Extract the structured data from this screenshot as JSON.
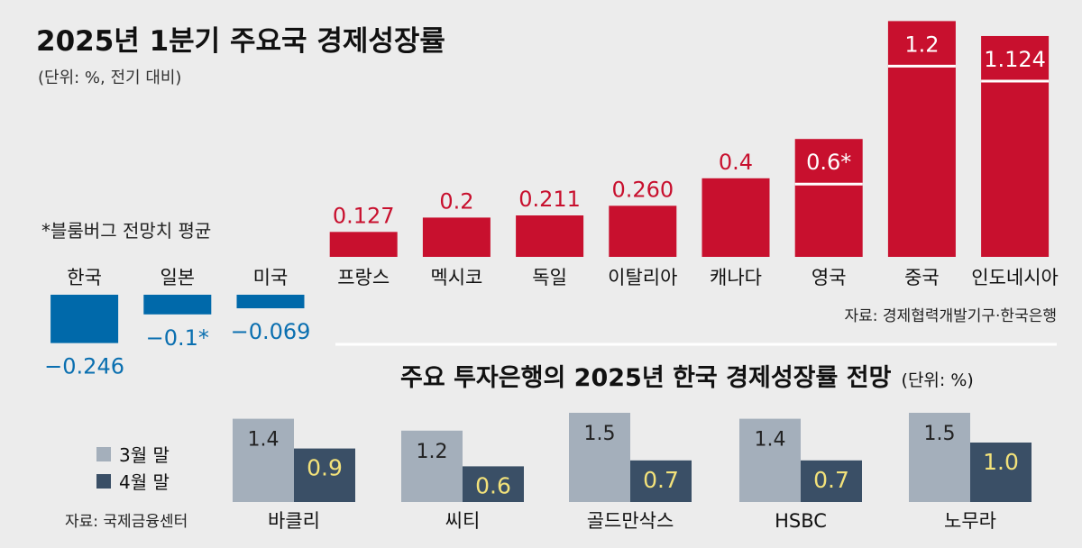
{
  "chart_data": [
    {
      "type": "bar",
      "title": "2025년 1분기 주요국 경제성장률",
      "subtitle": "(단위: %, 전기 대비)",
      "note": "*블룸버그 전망치 평균",
      "source": "자료: 경제협력개발기구·한국은행",
      "categories": [
        "한국",
        "일본",
        "미국",
        "프랑스",
        "멕시코",
        "독일",
        "이탈리아",
        "캐나다",
        "영국",
        "중국",
        "인도네시아"
      ],
      "values": [
        -0.246,
        -0.1,
        -0.069,
        0.127,
        0.2,
        0.211,
        0.26,
        0.4,
        0.6,
        1.2,
        1.124
      ],
      "value_labels": [
        "−0.246",
        "−0.1*",
        "−0.069",
        "0.127",
        "0.2",
        "0.211",
        "0.260",
        "0.4",
        "0.6*",
        "1.2",
        "1.124"
      ],
      "grid": false,
      "colors": {
        "positive": "#c8102e",
        "negative": "#0069aa",
        "negative_label": "#0a6fb0"
      }
    },
    {
      "type": "bar",
      "title": "주요 투자은행의 2025년 한국 경제성장률 전망",
      "unit_label": "(단위: %)",
      "source": "자료: 국제금융센터",
      "categories": [
        "바클리",
        "씨티",
        "골드만삭스",
        "HSBC",
        "노무라"
      ],
      "series": [
        {
          "name": "3월 말",
          "values": [
            1.4,
            1.2,
            1.5,
            1.4,
            1.5
          ],
          "labels": [
            "1.4",
            "1.2",
            "1.5",
            "1.4",
            "1.5"
          ],
          "color": "#a4afbb"
        },
        {
          "name": "4월 말",
          "values": [
            0.9,
            0.6,
            0.7,
            0.7,
            1.0
          ],
          "labels": [
            "0.9",
            "0.6",
            "0.7",
            "0.7",
            "1.0"
          ],
          "color": "#3a4f66",
          "label_color": "#f3e27a"
        }
      ],
      "legend": "left",
      "grid": false
    }
  ]
}
